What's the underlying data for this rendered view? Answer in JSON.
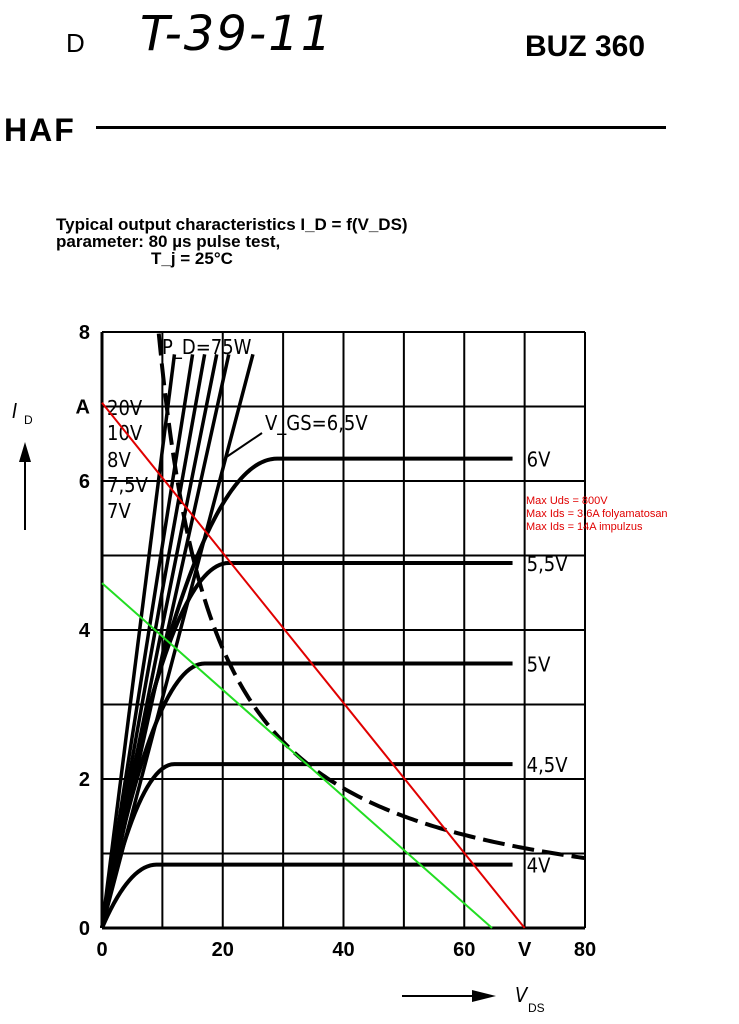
{
  "header": {
    "letter": "D",
    "handwritten": "T-39-11",
    "part": "BUZ 360",
    "maker": "HAF"
  },
  "chart_data": {
    "type": "line",
    "title_lines": [
      "Typical output characteristics I_D = f(V_DS)",
      "parameter: 80 µs pulse test,",
      "T_j = 25°C"
    ],
    "xlabel": "V_DS",
    "ylabel": "I_D",
    "xlim": [
      0,
      80
    ],
    "ylim": [
      0,
      8
    ],
    "x_ticks": [
      "0",
      "20",
      "40",
      "60",
      "V",
      "80"
    ],
    "y_ticks": [
      "0",
      "2",
      "4",
      "6",
      "A",
      "8"
    ],
    "grid": true,
    "series": [
      {
        "name": "4V",
        "saturation_current": 0.85,
        "knee_voltage": 9
      },
      {
        "name": "4,5V",
        "saturation_current": 2.2,
        "knee_voltage": 12
      },
      {
        "name": "5V",
        "saturation_current": 3.55,
        "knee_voltage": 17
      },
      {
        "name": "5,5V",
        "saturation_current": 4.9,
        "knee_voltage": 21
      },
      {
        "name": "6V",
        "saturation_current": 6.3,
        "knee_voltage": 29
      },
      {
        "name": "V_GS=6,5V",
        "steep_endpoint": [
          25,
          7.7
        ]
      },
      {
        "name": "7V",
        "steep_endpoint": [
          21,
          7.7
        ]
      },
      {
        "name": "7,5V",
        "steep_endpoint": [
          19,
          7.7
        ]
      },
      {
        "name": "8V",
        "steep_endpoint": [
          17,
          7.7
        ]
      },
      {
        "name": "10V",
        "steep_endpoint": [
          15,
          7.7
        ]
      },
      {
        "name": "20V",
        "steep_endpoint": [
          12,
          7.7
        ]
      }
    ],
    "power_limit": {
      "name": "P_D=75W",
      "watts": 75
    },
    "red_line": {
      "from": [
        0,
        7.05
      ],
      "to": [
        70,
        0
      ],
      "color": "#e00000"
    },
    "green_line": {
      "from": [
        0,
        4.63
      ],
      "to": [
        64.6,
        0
      ],
      "color": "#22dd22"
    },
    "annotations": [
      "Max Uds = 800V",
      "Max Ids = 3,6A folyamatosan",
      "Max Ids = 14A impulzus"
    ],
    "labels": {
      "pd": "P_D=75W",
      "vgs": "V_GS=6,5V"
    }
  }
}
